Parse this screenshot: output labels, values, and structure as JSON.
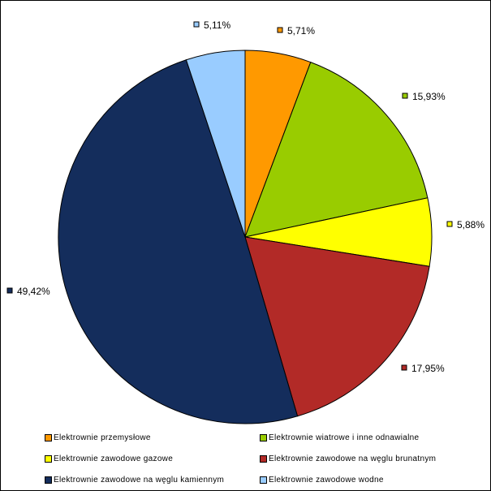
{
  "chart_data": {
    "type": "pie",
    "title": "",
    "start_angle_deg": 0,
    "direction": "clockwise",
    "slices": [
      {
        "label": "Elektrownie przemysłowe",
        "value": 5.71,
        "value_label": "5,71%",
        "color": "#ff9900"
      },
      {
        "label": "Elektrownie wiatrowe i inne odnawialne",
        "value": 15.93,
        "value_label": "15,93%",
        "color": "#99cc00"
      },
      {
        "label": "Elektrownie zawodowe gazowe",
        "value": 5.88,
        "value_label": "5,88%",
        "color": "#ffff00"
      },
      {
        "label": "Elektrownie zawodowe na węglu brunatnym",
        "value": 17.95,
        "value_label": "17,95%",
        "color": "#b22a27"
      },
      {
        "label": "Elektrownie zawodowe na węglu kamiennym",
        "value": 49.42,
        "value_label": "49,42%",
        "color": "#142d5c"
      },
      {
        "label": "Elektrownie zawodowe wodne",
        "value": 5.11,
        "value_label": "5,11%",
        "color": "#99ccff"
      }
    ],
    "legend_placement": "bottom"
  }
}
